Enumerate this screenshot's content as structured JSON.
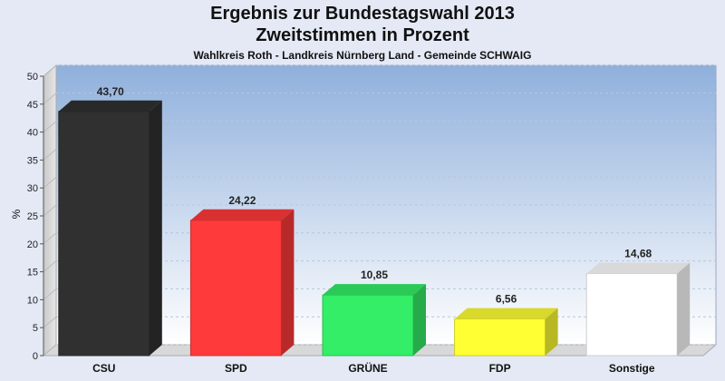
{
  "chart_data": {
    "type": "bar",
    "title": "Ergebnis zur Bundestagswahl 2013",
    "subtitle": "Zweitstimmen in Prozent",
    "caption": "Wahlkreis Roth - Landkreis Nürnberg Land - Gemeinde SCHWAIG",
    "ylabel": "%",
    "ylim": [
      0,
      50
    ],
    "yticks": [
      0,
      5,
      10,
      15,
      20,
      25,
      30,
      35,
      40,
      45,
      50
    ],
    "categories": [
      "CSU",
      "SPD",
      "GRÜNE",
      "FDP",
      "Sonstige"
    ],
    "values": [
      43.7,
      24.22,
      10.85,
      6.56,
      14.68
    ],
    "value_labels": [
      "43,70",
      "24,22",
      "10,85",
      "6,56",
      "14,68"
    ],
    "colors": [
      "#303030",
      "#ff3a3a",
      "#33ee66",
      "#ffff33",
      "#ffffff"
    ],
    "grid": true
  }
}
